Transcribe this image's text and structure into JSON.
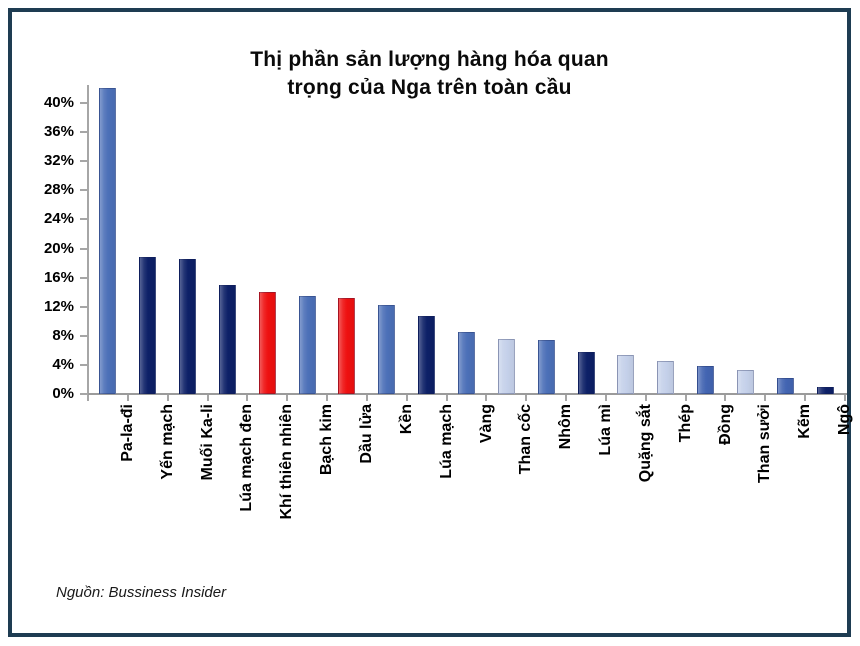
{
  "frame": {
    "border_color": "#1e3c52",
    "background": "#ffffff"
  },
  "chart_data": {
    "type": "bar",
    "title": "Thị phần sản lượng hàng hóa quan trọng của Nga trên toàn cầu",
    "title_lines": [
      "Thị phần sản lượng hàng hóa quan",
      "trọng của Nga trên toàn cầu"
    ],
    "xlabel": "",
    "ylabel": "",
    "ylim": [
      0,
      42.2
    ],
    "ytick_step": 4,
    "ytick_labels": [
      "0%",
      "4%",
      "8%",
      "12%",
      "16%",
      "20%",
      "24%",
      "28%",
      "32%",
      "36%",
      "40%"
    ],
    "grid": false,
    "legend": null,
    "categories": [
      "Pa-la-đi",
      "Yến mạch",
      "Muối Ka-li",
      "Lúa mạch đen",
      "Khí thiên nhiên",
      "Bạch kim",
      "Dầu lửa",
      "Kền",
      "Lúa mạch",
      "Vàng",
      "Than cốc",
      "Nhôm",
      "Lúa mì",
      "Quặng sắt",
      "Thép",
      "Đồng",
      "Than sưởi",
      "Kẽm",
      "Ngô"
    ],
    "values": [
      42,
      18.8,
      18.5,
      15,
      14,
      13.5,
      13.2,
      12.2,
      10.7,
      8.5,
      7.6,
      7.4,
      5.8,
      5.3,
      4.6,
      3.8,
      3.3,
      2.2,
      1.0
    ],
    "bar_colors": [
      "#4C70B8",
      "#0D2067",
      "#0D2067",
      "#0D2067",
      "#EE1010",
      "#4C70B8",
      "#EE1010",
      "#4C70B8",
      "#0D2067",
      "#4C70B8",
      "#C5D1EA",
      "#4C70B8",
      "#0D2067",
      "#C5D1EA",
      "#C5D1EA",
      "#4365B2",
      "#C5D1EA",
      "#4365B2",
      "#0D2067"
    ],
    "palette": {
      "medium_blue": "#4C70B8",
      "dark_navy": "#0D2067",
      "red": "#EE1010",
      "light_blue": "#C5D1EA",
      "royal_blue": "#4365B2"
    }
  },
  "source": {
    "label": "Nguồn: Bussiness Insider"
  }
}
